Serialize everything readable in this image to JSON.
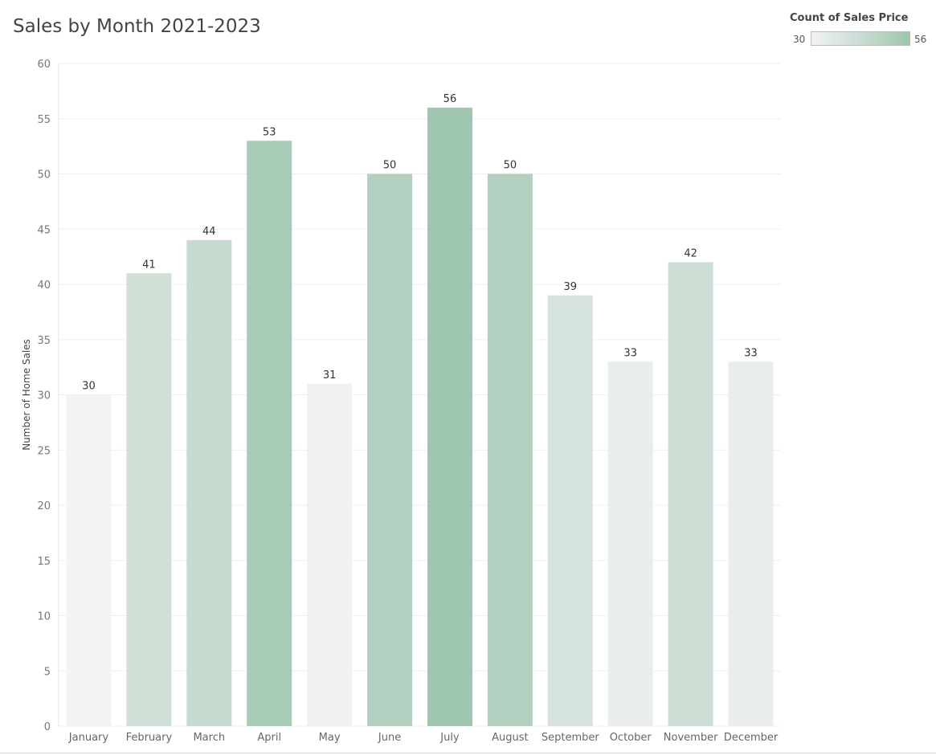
{
  "chart_data": {
    "type": "bar",
    "title": "Sales by Month 2021-2023",
    "xlabel": "",
    "ylabel": "Number of Home Sales",
    "categories": [
      "January",
      "February",
      "March",
      "April",
      "May",
      "June",
      "July",
      "August",
      "September",
      "October",
      "November",
      "December"
    ],
    "values": [
      30,
      41,
      44,
      53,
      31,
      50,
      56,
      50,
      39,
      33,
      42,
      33
    ],
    "ylim": [
      0,
      60
    ],
    "yticks": [
      0,
      5,
      10,
      15,
      20,
      25,
      30,
      35,
      40,
      45,
      50,
      55,
      60
    ],
    "data_labels": true,
    "grid": true,
    "legend": {
      "title": "Count of Sales Price",
      "min": 30,
      "max": 56,
      "placement": "top-right",
      "color_low": "#f3f3f3",
      "color_high": "#9ec6b0"
    }
  }
}
